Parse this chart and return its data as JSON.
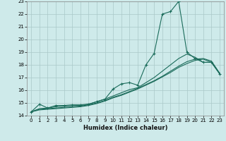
{
  "xlabel": "Humidex (Indice chaleur)",
  "bg_color": "#ceeaea",
  "grid_color": "#aac8c8",
  "line_color": "#1a6b5a",
  "xlim": [
    -0.5,
    23.5
  ],
  "ylim": [
    14,
    23
  ],
  "xticks": [
    0,
    1,
    2,
    3,
    4,
    5,
    6,
    7,
    8,
    9,
    10,
    11,
    12,
    13,
    14,
    15,
    16,
    17,
    18,
    19,
    20,
    21,
    22,
    23
  ],
  "yticks": [
    14,
    15,
    16,
    17,
    18,
    19,
    20,
    21,
    22,
    23
  ],
  "line1_x": [
    0,
    1,
    2,
    3,
    4,
    5,
    6,
    7,
    8,
    9,
    10,
    11,
    12,
    13,
    14,
    15,
    16,
    17,
    18,
    19,
    20,
    21,
    22,
    23
  ],
  "line1_y": [
    14.3,
    14.9,
    14.6,
    14.8,
    14.8,
    14.85,
    14.85,
    14.9,
    15.1,
    15.3,
    16.1,
    16.5,
    16.6,
    16.4,
    18.0,
    18.9,
    22.0,
    22.2,
    23.0,
    19.0,
    18.5,
    18.2,
    18.2,
    17.3
  ],
  "line2_x": [
    0,
    1,
    2,
    3,
    4,
    5,
    6,
    7,
    8,
    9,
    10,
    11,
    12,
    13,
    14,
    15,
    16,
    17,
    18,
    19,
    20,
    21,
    22,
    23
  ],
  "line2_y": [
    14.3,
    14.55,
    14.6,
    14.7,
    14.75,
    14.8,
    14.8,
    14.9,
    15.1,
    15.3,
    15.55,
    15.8,
    16.05,
    16.2,
    16.6,
    17.0,
    17.5,
    18.0,
    18.5,
    18.85,
    18.6,
    18.2,
    18.2,
    17.3
  ],
  "line3_x": [
    0,
    1,
    2,
    3,
    4,
    5,
    6,
    7,
    8,
    9,
    10,
    11,
    12,
    13,
    14,
    15,
    16,
    17,
    18,
    19,
    20,
    21,
    22,
    23
  ],
  "line3_y": [
    14.3,
    14.5,
    14.55,
    14.6,
    14.65,
    14.7,
    14.75,
    14.85,
    15.0,
    15.2,
    15.45,
    15.65,
    15.9,
    16.15,
    16.45,
    16.75,
    17.1,
    17.5,
    17.9,
    18.25,
    18.45,
    18.5,
    18.3,
    17.35
  ],
  "line4_x": [
    0,
    1,
    2,
    3,
    4,
    5,
    6,
    7,
    8,
    9,
    10,
    11,
    12,
    13,
    14,
    15,
    16,
    17,
    18,
    19,
    20,
    21,
    22,
    23
  ],
  "line4_y": [
    14.3,
    14.45,
    14.5,
    14.55,
    14.6,
    14.65,
    14.7,
    14.8,
    14.95,
    15.15,
    15.4,
    15.6,
    15.85,
    16.1,
    16.4,
    16.7,
    17.05,
    17.4,
    17.8,
    18.1,
    18.35,
    18.45,
    18.2,
    17.3
  ]
}
